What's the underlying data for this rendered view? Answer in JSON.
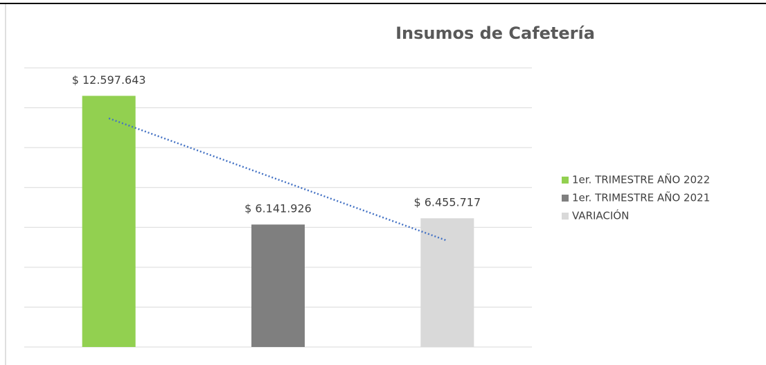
{
  "chart_data": {
    "type": "bar",
    "title": "Insumos de Cafetería",
    "series": [
      {
        "name": "1er. TRIMESTRE AÑO 2022",
        "color": "#92d050",
        "values": [
          12597643
        ],
        "value_labels": [
          "$ 12.597.643"
        ]
      },
      {
        "name": "1er. TRIMESTRE AÑO 2021",
        "color": "#7f7f7f",
        "values": [
          6141926
        ],
        "value_labels": [
          "$ 6.141.926"
        ]
      },
      {
        "name": "VARIACIÓN",
        "color": "#d9d9d9",
        "values": [
          6455717
        ],
        "value_labels": [
          "$ 6.455.717"
        ]
      }
    ],
    "ylim": [
      0,
      14000000
    ],
    "yticks": [
      0,
      2000000,
      4000000,
      6000000,
      8000000,
      10000000,
      12000000,
      14000000
    ],
    "grid": true,
    "legend": "right",
    "trendline": "linear",
    "trendline_color": "#4472c4"
  }
}
